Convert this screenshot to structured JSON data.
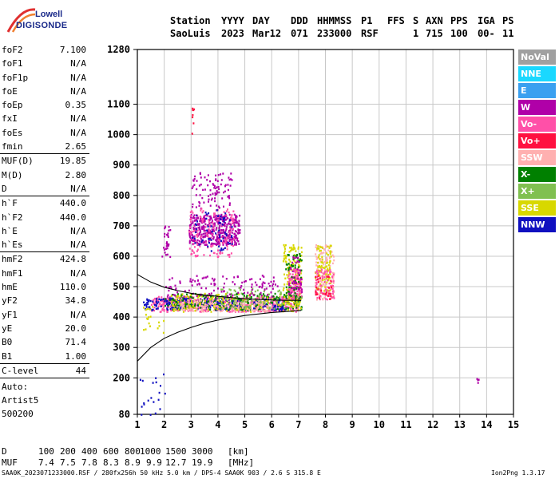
{
  "logo": {
    "line1": "Lowell",
    "line2": "DIGISONDE"
  },
  "header": {
    "labels": [
      "Station",
      "YYYY",
      "DAY",
      "DDD",
      "HHMMSS",
      "P1",
      "FFS",
      "S",
      "AXN",
      "PPS",
      "IGA",
      "PS"
    ],
    "values": [
      "SaoLuis",
      "2023",
      "Mar12",
      "071",
      "233000",
      "RSF",
      "1",
      "715",
      "100",
      "00-",
      "11"
    ]
  },
  "params": [
    {
      "label": "foF2",
      "value": "7.100"
    },
    {
      "label": "foF1",
      "value": "N/A"
    },
    {
      "label": "foF1p",
      "value": "N/A"
    },
    {
      "label": "foE",
      "value": "N/A"
    },
    {
      "label": "foEp",
      "value": "0.35"
    },
    {
      "label": "fxI",
      "value": "N/A"
    },
    {
      "label": "foEs",
      "value": "N/A"
    },
    {
      "label": "fmin",
      "value": "2.65",
      "sep": true
    },
    {
      "label": "MUF(D)",
      "value": "19.85"
    },
    {
      "label": "M(D)",
      "value": "2.80"
    },
    {
      "label": "D",
      "value": "N/A",
      "sep": true
    },
    {
      "label": "h`F",
      "value": "440.0"
    },
    {
      "label": "h`F2",
      "value": "440.0"
    },
    {
      "label": "h`E",
      "value": "N/A"
    },
    {
      "label": "h`Es",
      "value": "N/A",
      "sep": true
    },
    {
      "label": "hmF2",
      "value": "424.8"
    },
    {
      "label": "hmF1",
      "value": "N/A"
    },
    {
      "label": "hmE",
      "value": "110.0"
    },
    {
      "label": "yF2",
      "value": "34.8"
    },
    {
      "label": "yF1",
      "value": "N/A"
    },
    {
      "label": "yE",
      "value": "20.0"
    },
    {
      "label": "B0",
      "value": "71.4"
    },
    {
      "label": "B1",
      "value": "1.00",
      "sep": true
    },
    {
      "label": "C-level",
      "value": "44",
      "sep": true
    }
  ],
  "autoscale": {
    "lines": [
      "Auto:",
      "Artist5",
      "500200"
    ]
  },
  "legend": [
    {
      "label": "NoVal",
      "color": "#a0a0a0"
    },
    {
      "label": "NNE",
      "color": "#1ad8ff"
    },
    {
      "label": "E",
      "color": "#3aa0f0"
    },
    {
      "label": "W",
      "color": "#b000a8"
    },
    {
      "label": "Vo-",
      "color": "#ff50a8"
    },
    {
      "label": "Vo+",
      "color": "#ff1040"
    },
    {
      "label": "SSW",
      "color": "#ffb0b0"
    },
    {
      "label": "X-",
      "color": "#008000"
    },
    {
      "label": "X+",
      "color": "#80c050"
    },
    {
      "label": "SSE",
      "color": "#d8d800"
    },
    {
      "label": "NNW",
      "color": "#1010c0"
    }
  ],
  "muf_table": {
    "d_label": "D",
    "d_values": [
      "100",
      "200",
      "400",
      "600",
      "800",
      "1000",
      "1500",
      "3000"
    ],
    "d_unit": "[km]",
    "muf_label": "MUF",
    "muf_values": [
      "7.4",
      "7.5",
      "7.8",
      "8.3",
      "8.9",
      "9.9",
      "12.7",
      "19.9"
    ],
    "muf_unit": "[MHz]"
  },
  "footer": "SAA0K_2023071233000.RSF / 280fx256h 50 kHz 5.0 km / DPS-4 SAA0K 903 / 2.6 S 315.8 E",
  "version": "Ion2Png 1.3.17",
  "chart_data": {
    "type": "scatter",
    "xlim": [
      1,
      15
    ],
    "ylim": [
      80,
      1280
    ],
    "x_ticks": [
      1,
      2,
      3,
      4,
      5,
      6,
      7,
      8,
      9,
      10,
      11,
      12,
      13,
      14,
      15
    ],
    "y_ticks": [
      80,
      200,
      300,
      400,
      500,
      600,
      700,
      800,
      900,
      1000,
      1100,
      1280
    ],
    "grid": true,
    "clusters": [
      {
        "color": "#b000a8",
        "x": [
          2.9,
          4.8
        ],
        "y": [
          640,
          740
        ],
        "n": 420
      },
      {
        "color": "#b000a8",
        "x": [
          3.0,
          4.5
        ],
        "y": [
          760,
          880
        ],
        "n": 90
      },
      {
        "color": "#ff50a8",
        "x": [
          2.9,
          4.6
        ],
        "y": [
          600,
          760
        ],
        "n": 150
      },
      {
        "color": "#1010c0",
        "x": [
          3.0,
          4.5
        ],
        "y": [
          620,
          760
        ],
        "n": 60
      },
      {
        "color": "#b000a8",
        "x": [
          1.9,
          2.2
        ],
        "y": [
          600,
          710
        ],
        "n": 30
      },
      {
        "color": "#ff50a8",
        "x": [
          1.5,
          7.0
        ],
        "y": [
          420,
          470
        ],
        "n": 560
      },
      {
        "color": "#1010c0",
        "x": [
          1.2,
          6.5
        ],
        "y": [
          425,
          465
        ],
        "n": 260
      },
      {
        "color": "#008000",
        "x": [
          2.0,
          7.1
        ],
        "y": [
          425,
          480
        ],
        "n": 240
      },
      {
        "color": "#d8d800",
        "x": [
          2.2,
          7.1
        ],
        "y": [
          420,
          480
        ],
        "n": 160
      },
      {
        "color": "#ffb0b0",
        "x": [
          2.6,
          6.0
        ],
        "y": [
          420,
          460
        ],
        "n": 150
      },
      {
        "color": "#80c050",
        "x": [
          4.0,
          7.1
        ],
        "y": [
          430,
          500
        ],
        "n": 100
      },
      {
        "color": "#b000a8",
        "x": [
          2.0,
          6.2
        ],
        "y": [
          470,
          540
        ],
        "n": 120
      },
      {
        "color": "#d8d800",
        "x": [
          6.4,
          7.1
        ],
        "y": [
          440,
          640
        ],
        "n": 140
      },
      {
        "color": "#ff50a8",
        "x": [
          6.6,
          7.1
        ],
        "y": [
          460,
          560
        ],
        "n": 110
      },
      {
        "color": "#008000",
        "x": [
          6.5,
          7.1
        ],
        "y": [
          460,
          620
        ],
        "n": 60
      },
      {
        "color": "#b000a8",
        "x": [
          6.6,
          7.1
        ],
        "y": [
          480,
          600
        ],
        "n": 40
      },
      {
        "color": "#ffb0b0",
        "x": [
          7.6,
          8.3
        ],
        "y": [
          460,
          640
        ],
        "n": 140
      },
      {
        "color": "#d8d800",
        "x": [
          7.6,
          8.2
        ],
        "y": [
          480,
          640
        ],
        "n": 90
      },
      {
        "color": "#ff50a8",
        "x": [
          7.6,
          8.3
        ],
        "y": [
          460,
          560
        ],
        "n": 70
      },
      {
        "color": "#ff1040",
        "x": [
          7.6,
          8.2
        ],
        "y": [
          460,
          540
        ],
        "n": 30
      },
      {
        "color": "#1010c0",
        "x": [
          1.0,
          2.1
        ],
        "y": [
          80,
          220
        ],
        "n": 20
      },
      {
        "color": "#d8d800",
        "x": [
          1.2,
          2.0
        ],
        "y": [
          350,
          440
        ],
        "n": 20
      },
      {
        "color": "#ff1040",
        "x": [
          3.0,
          3.1
        ],
        "y": [
          1000,
          1090
        ],
        "n": 8
      },
      {
        "color": "#b000a8",
        "x": [
          13.6,
          13.7
        ],
        "y": [
          180,
          200
        ],
        "n": 4
      }
    ],
    "traces": [
      {
        "name": "",
        "x": [
          1.0,
          1.5,
          2.0,
          2.5,
          3.0,
          3.5,
          4.0,
          4.5,
          5.0,
          5.5,
          6.0,
          6.5,
          7.0,
          7.1
        ],
        "y": [
          540,
          515,
          498,
          487,
          478,
          472,
          468,
          464,
          460,
          458,
          456,
          455,
          455,
          455
        ]
      },
      {
        "name": "",
        "x": [
          1.0,
          1.5,
          2.0,
          2.5,
          3.0,
          3.5,
          4.0,
          4.5,
          5.0,
          5.5,
          6.0,
          6.5,
          7.0,
          7.1
        ],
        "y": [
          255,
          300,
          330,
          350,
          366,
          380,
          390,
          398,
          405,
          410,
          415,
          418,
          421,
          422
        ]
      }
    ]
  }
}
